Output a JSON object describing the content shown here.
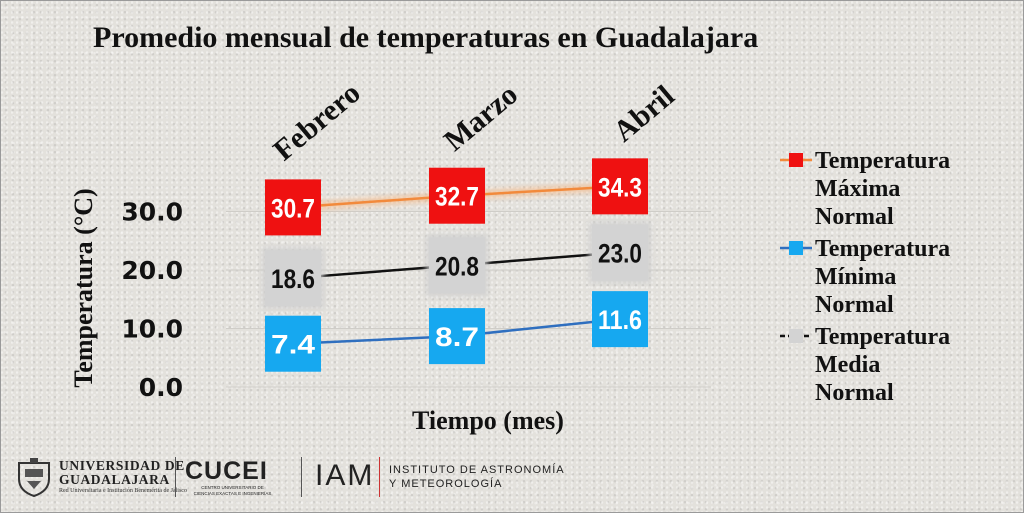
{
  "chart_data": {
    "type": "line",
    "title": "Promedio mensual de temperaturas en Guadalajara",
    "xlabel": "Tiempo (mes)",
    "ylabel": "Temperatura  (°C)",
    "categories": [
      "Febrero",
      "Marzo",
      "Abril"
    ],
    "yticks": [
      "0.0",
      "10.0",
      "20.0",
      "30.0"
    ],
    "ylim": [
      0,
      40
    ],
    "grid": true,
    "legend_position": "right",
    "series": [
      {
        "name": "Temperatura Máxima Normal",
        "values": [
          30.7,
          32.7,
          34.3
        ],
        "labels": [
          "30.7",
          "32.7",
          "34.3"
        ],
        "line_color": "#f28a3c",
        "marker_color": "#ef1111"
      },
      {
        "name": "Temperatura Mínima Normal",
        "values": [
          7.4,
          8.7,
          11.6
        ],
        "labels": [
          "7.4",
          "8.7",
          "11.6"
        ],
        "line_color": "#2f6fbf",
        "marker_color": "#16a8f0"
      },
      {
        "name": "Temperatura Media Normal",
        "values": [
          18.6,
          20.8,
          23.0
        ],
        "labels": [
          "18.6",
          "20.8",
          "23.0"
        ],
        "line_color": "#111111",
        "marker_color": "#d3d3d3"
      }
    ]
  },
  "legend": {
    "items": [
      {
        "lines": [
          "Temperatura",
          "Máxima",
          "Normal"
        ],
        "line_color": "#f28a3c",
        "marker_color": "#ef1111"
      },
      {
        "lines": [
          "Temperatura",
          "Mínima",
          "Normal"
        ],
        "line_color": "#2f6fbf",
        "marker_color": "#16a8f0"
      },
      {
        "lines": [
          "Temperatura",
          "Media",
          "Normal"
        ],
        "line_color": "#111111",
        "marker_color": "#d3d3d3"
      }
    ]
  },
  "footer": {
    "ug_line1": "UNIVERSIDAD DE",
    "ug_line2": "GUADALAJARA",
    "ug_line3": "Red Universitaria e Institución Benemérita de Jalisco",
    "cucei_name": "CUCEI",
    "cucei_sub1": "CENTRO UNIVERSITARIO DE",
    "cucei_sub2": "CIENCIAS EXACTAS E INGENIERÍAS",
    "iam_name": "IAM",
    "iam_sub1": "INSTITUTO DE ASTRONOMÍA",
    "iam_sub2": "Y METEOROLOGÍA"
  }
}
